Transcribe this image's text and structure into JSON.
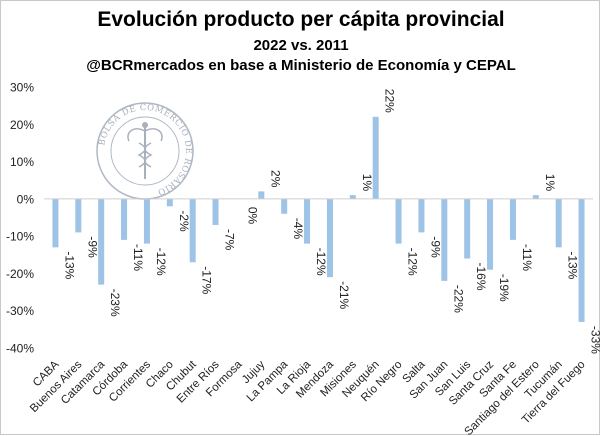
{
  "title": "Evolución producto per cápita provincial",
  "subtitle": "2022 vs. 2011",
  "source": "@BCRmercados en base a Ministerio de Economía y CEPAL",
  "watermark_text": "BOLSA DE COMERCIO DE ROSARIO",
  "chart_data": {
    "type": "bar",
    "title": "Evolución producto per cápita provincial",
    "subtitle": "2022 vs. 2011",
    "categories": [
      "CABA",
      "Buenos Aires",
      "Catamarca",
      "Córdoba",
      "Corrientes",
      "Chaco",
      "Chubut",
      "Entre Ríos",
      "Formosa",
      "Jujuy",
      "La Pampa",
      "La Rioja",
      "Mendoza",
      "Misiones",
      "Neuquén",
      "Río Negro",
      "Salta",
      "San Juan",
      "San Luis",
      "Santa Cruz",
      "Santa Fe",
      "Santiago del Estero",
      "Tucumán",
      "Tierra del Fuego"
    ],
    "values": [
      -13,
      -9,
      -23,
      -11,
      -12,
      -2,
      -17,
      -7,
      0,
      2,
      -4,
      -12,
      -21,
      1,
      22,
      -12,
      -9,
      -22,
      -16,
      -19,
      -11,
      1,
      -13,
      -33
    ],
    "data_labels": [
      "-13%",
      "-9%",
      "-23%",
      "-11%",
      "-12%",
      "-2%",
      "-17%",
      "-7%",
      "0%",
      "2%",
      "-4%",
      "-12%",
      "-21%",
      "1%",
      "22%",
      "-12%",
      "-9%",
      "-22%",
      "-16%",
      "-19%",
      "-11%",
      "1%",
      "-13%",
      "-33%"
    ],
    "y_ticks": [
      30,
      20,
      10,
      0,
      -10,
      -20,
      -30,
      -40
    ],
    "y_tick_labels": [
      "30%",
      "20%",
      "10%",
      "0%",
      "-10%",
      "-20%",
      "-30%",
      "-40%"
    ],
    "ylim": [
      -40,
      30
    ],
    "grid": false,
    "bar_color": "#9dc3e6"
  }
}
